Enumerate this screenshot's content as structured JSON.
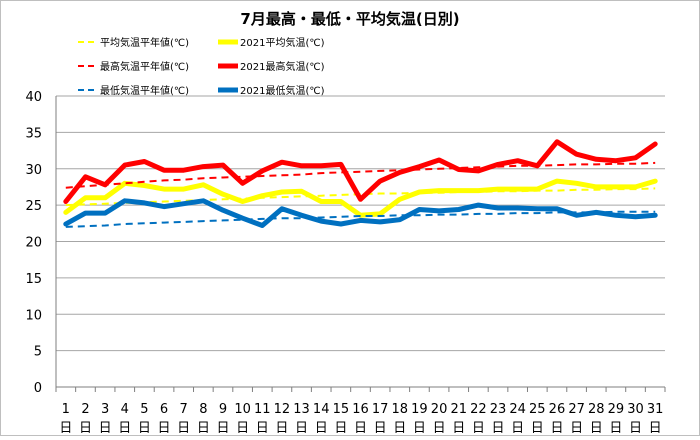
{
  "chart_data": {
    "type": "line",
    "title": "7月最高・最低・平均気温(日別)",
    "xlabel": "",
    "ylabel": "",
    "ylim": [
      0,
      40
    ],
    "yticks": [
      0,
      5,
      10,
      15,
      20,
      25,
      30,
      35,
      40
    ],
    "grid": true,
    "legend_position": "top-left",
    "categories": [
      "1",
      "2",
      "3",
      "4",
      "5",
      "6",
      "7",
      "8",
      "9",
      "10",
      "11",
      "12",
      "13",
      "14",
      "15",
      "16",
      "17",
      "18",
      "19",
      "20",
      "21",
      "22",
      "23",
      "24",
      "25",
      "26",
      "27",
      "28",
      "29",
      "30",
      "31"
    ],
    "day_suffix": "日",
    "series": [
      {
        "name": "平均気温平年値(℃)",
        "color": "#FFFF00",
        "style": "dashed",
        "values": [
          25.0,
          25.1,
          25.2,
          25.3,
          25.4,
          25.5,
          25.6,
          25.7,
          25.8,
          25.9,
          26.0,
          26.1,
          26.2,
          26.3,
          26.4,
          26.5,
          26.6,
          26.6,
          26.7,
          26.7,
          26.8,
          26.8,
          26.9,
          26.9,
          27.0,
          27.0,
          27.1,
          27.1,
          27.2,
          27.2,
          27.3
        ]
      },
      {
        "name": "2021平均気温(℃)",
        "color": "#FFFF00",
        "style": "solid",
        "values": [
          24.0,
          26.0,
          26.0,
          28.0,
          27.7,
          27.2,
          27.2,
          27.8,
          26.5,
          25.5,
          26.3,
          26.8,
          26.9,
          25.5,
          25.5,
          23.6,
          23.8,
          25.8,
          26.8,
          27.0,
          27.0,
          27.0,
          27.2,
          27.2,
          27.2,
          28.3,
          28.0,
          27.5,
          27.5,
          27.5,
          28.3
        ]
      },
      {
        "name": "最高気温平年値(℃)",
        "color": "#FF0000",
        "style": "dashed",
        "values": [
          27.4,
          27.6,
          27.8,
          28.0,
          28.2,
          28.4,
          28.5,
          28.7,
          28.8,
          28.9,
          29.0,
          29.1,
          29.2,
          29.4,
          29.5,
          29.6,
          29.7,
          29.8,
          29.9,
          30.0,
          30.1,
          30.2,
          30.3,
          30.4,
          30.4,
          30.5,
          30.6,
          30.6,
          30.7,
          30.7,
          30.8
        ]
      },
      {
        "name": "2021最高気温(℃)",
        "color": "#FF0000",
        "style": "solid",
        "values": [
          25.5,
          28.9,
          27.8,
          30.5,
          31.0,
          29.8,
          29.8,
          30.3,
          30.5,
          28.0,
          29.7,
          30.9,
          30.4,
          30.4,
          30.6,
          25.8,
          28.3,
          29.5,
          30.3,
          31.2,
          29.9,
          29.7,
          30.6,
          31.1,
          30.4,
          33.7,
          32.0,
          31.3,
          31.1,
          31.5,
          33.4
        ]
      },
      {
        "name": "最低気温平年値(℃)",
        "color": "#0070C0",
        "style": "dashed",
        "values": [
          22.0,
          22.1,
          22.2,
          22.4,
          22.5,
          22.6,
          22.7,
          22.8,
          22.9,
          23.0,
          23.1,
          23.2,
          23.2,
          23.3,
          23.4,
          23.5,
          23.5,
          23.6,
          23.6,
          23.7,
          23.7,
          23.8,
          23.8,
          23.9,
          23.9,
          24.0,
          24.0,
          24.0,
          24.1,
          24.1,
          24.1
        ]
      },
      {
        "name": "2021最低気温(℃)",
        "color": "#0070C0",
        "style": "solid",
        "values": [
          22.4,
          23.9,
          23.9,
          25.6,
          25.3,
          24.8,
          25.2,
          25.6,
          24.3,
          23.2,
          22.2,
          24.5,
          23.6,
          22.8,
          22.4,
          22.9,
          22.7,
          23.0,
          24.4,
          24.2,
          24.4,
          25.0,
          24.6,
          24.6,
          24.5,
          24.5,
          23.6,
          24.0,
          23.6,
          23.4,
          23.6
        ]
      }
    ]
  }
}
